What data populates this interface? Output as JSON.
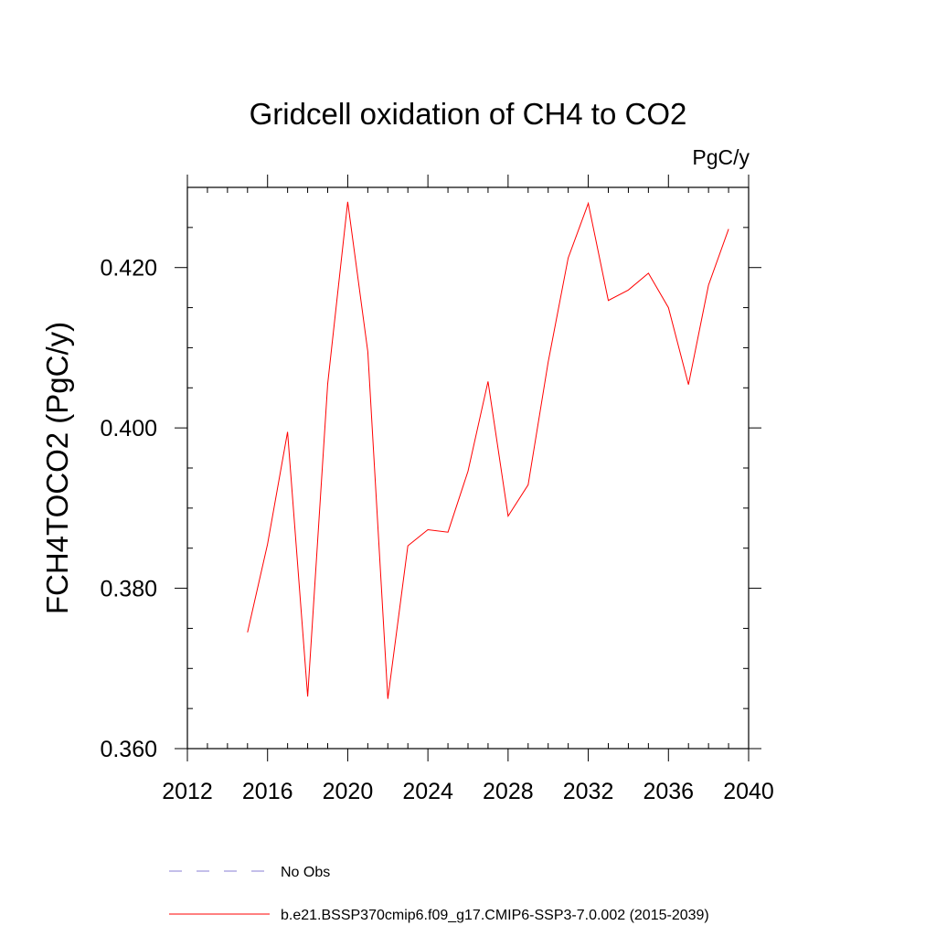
{
  "chart_data": {
    "type": "line",
    "title": "Gridcell oxidation of CH4 to CO2",
    "units": "PgC/y",
    "xlabel": "",
    "ylabel": "FCH4TOCO2  (PgC/y)",
    "xlim": [
      2012,
      2040
    ],
    "ylim": [
      0.36,
      0.43
    ],
    "xticks": [
      2012,
      2016,
      2020,
      2024,
      2028,
      2032,
      2036,
      2040
    ],
    "xtick_labels": [
      "2012",
      "2016",
      "2020",
      "2024",
      "2028",
      "2032",
      "2036",
      "2040"
    ],
    "yticks": [
      0.36,
      0.38,
      0.4,
      0.42
    ],
    "ytick_labels": [
      "0.360",
      "0.380",
      "0.400",
      "0.420"
    ],
    "series": [
      {
        "name": "b.e21.BSSP370cmip6.f09_g17.CMIP6-SSP3-7.0.002 (2015-2039)",
        "color": "#ff0000",
        "x": [
          2015,
          2016,
          2017,
          2018,
          2019,
          2020,
          2021,
          2022,
          2023,
          2024,
          2025,
          2026,
          2027,
          2028,
          2029,
          2030,
          2031,
          2032,
          2033,
          2034,
          2035,
          2036,
          2037,
          2038,
          2039
        ],
        "values": [
          0.3745,
          0.3855,
          0.3995,
          0.3665,
          0.4055,
          0.4282,
          0.4095,
          0.3662,
          0.3853,
          0.3873,
          0.387,
          0.3946,
          0.4058,
          0.389,
          0.3929,
          0.4082,
          0.4212,
          0.428,
          0.4159,
          0.4172,
          0.4193,
          0.415,
          0.4054,
          0.4178,
          0.4248
        ]
      }
    ],
    "legend": [
      {
        "label": "No Obs",
        "color": "#8a7fd6",
        "style": "dashed"
      },
      {
        "label": "b.e21.BSSP370cmip6.f09_g17.CMIP6-SSP3-7.0.002 (2015-2039)",
        "color": "#ff0000",
        "style": "solid"
      }
    ]
  }
}
